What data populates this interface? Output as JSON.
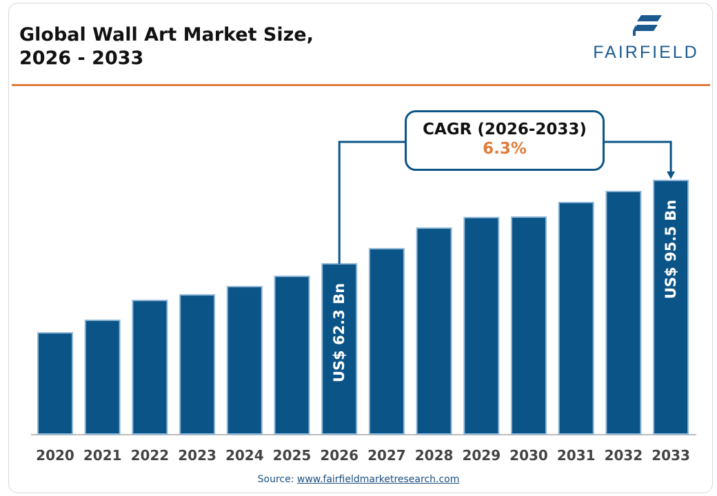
{
  "title_line1": "Global Wall Art Market Size,",
  "title_line2": "2026 - 2033",
  "logo_text": "FAIRFIELD",
  "cagr_label": "CAGR (2026-2033)",
  "cagr_value": "6.3%",
  "source_prefix": "Source: ",
  "source_link": "www.fairfieldmarketresearch.com",
  "colors": {
    "bar": "#0b5487",
    "bar_outline": "#8fb8d8",
    "accent": "#e07b39"
  },
  "chart_data": {
    "type": "bar",
    "categories": [
      "2020",
      "2021",
      "2022",
      "2023",
      "2024",
      "2025",
      "2026",
      "2027",
      "2028",
      "2029",
      "2030",
      "2031",
      "2032",
      "2033"
    ],
    "values": [
      34.8,
      39.8,
      47.7,
      49.9,
      53.2,
      57.3,
      62.3,
      68.3,
      76.5,
      80.7,
      80.9,
      86.7,
      91.1,
      95.5
    ],
    "unit": "US$ Bn",
    "data_labels": {
      "2026": "US$ 62.3 Bn",
      "2033": "US$ 95.5 Bn"
    },
    "title": "Global Wall Art Market Size, 2026 - 2033",
    "xlabel": "",
    "ylabel": "",
    "grid": false,
    "legend": "none"
  }
}
